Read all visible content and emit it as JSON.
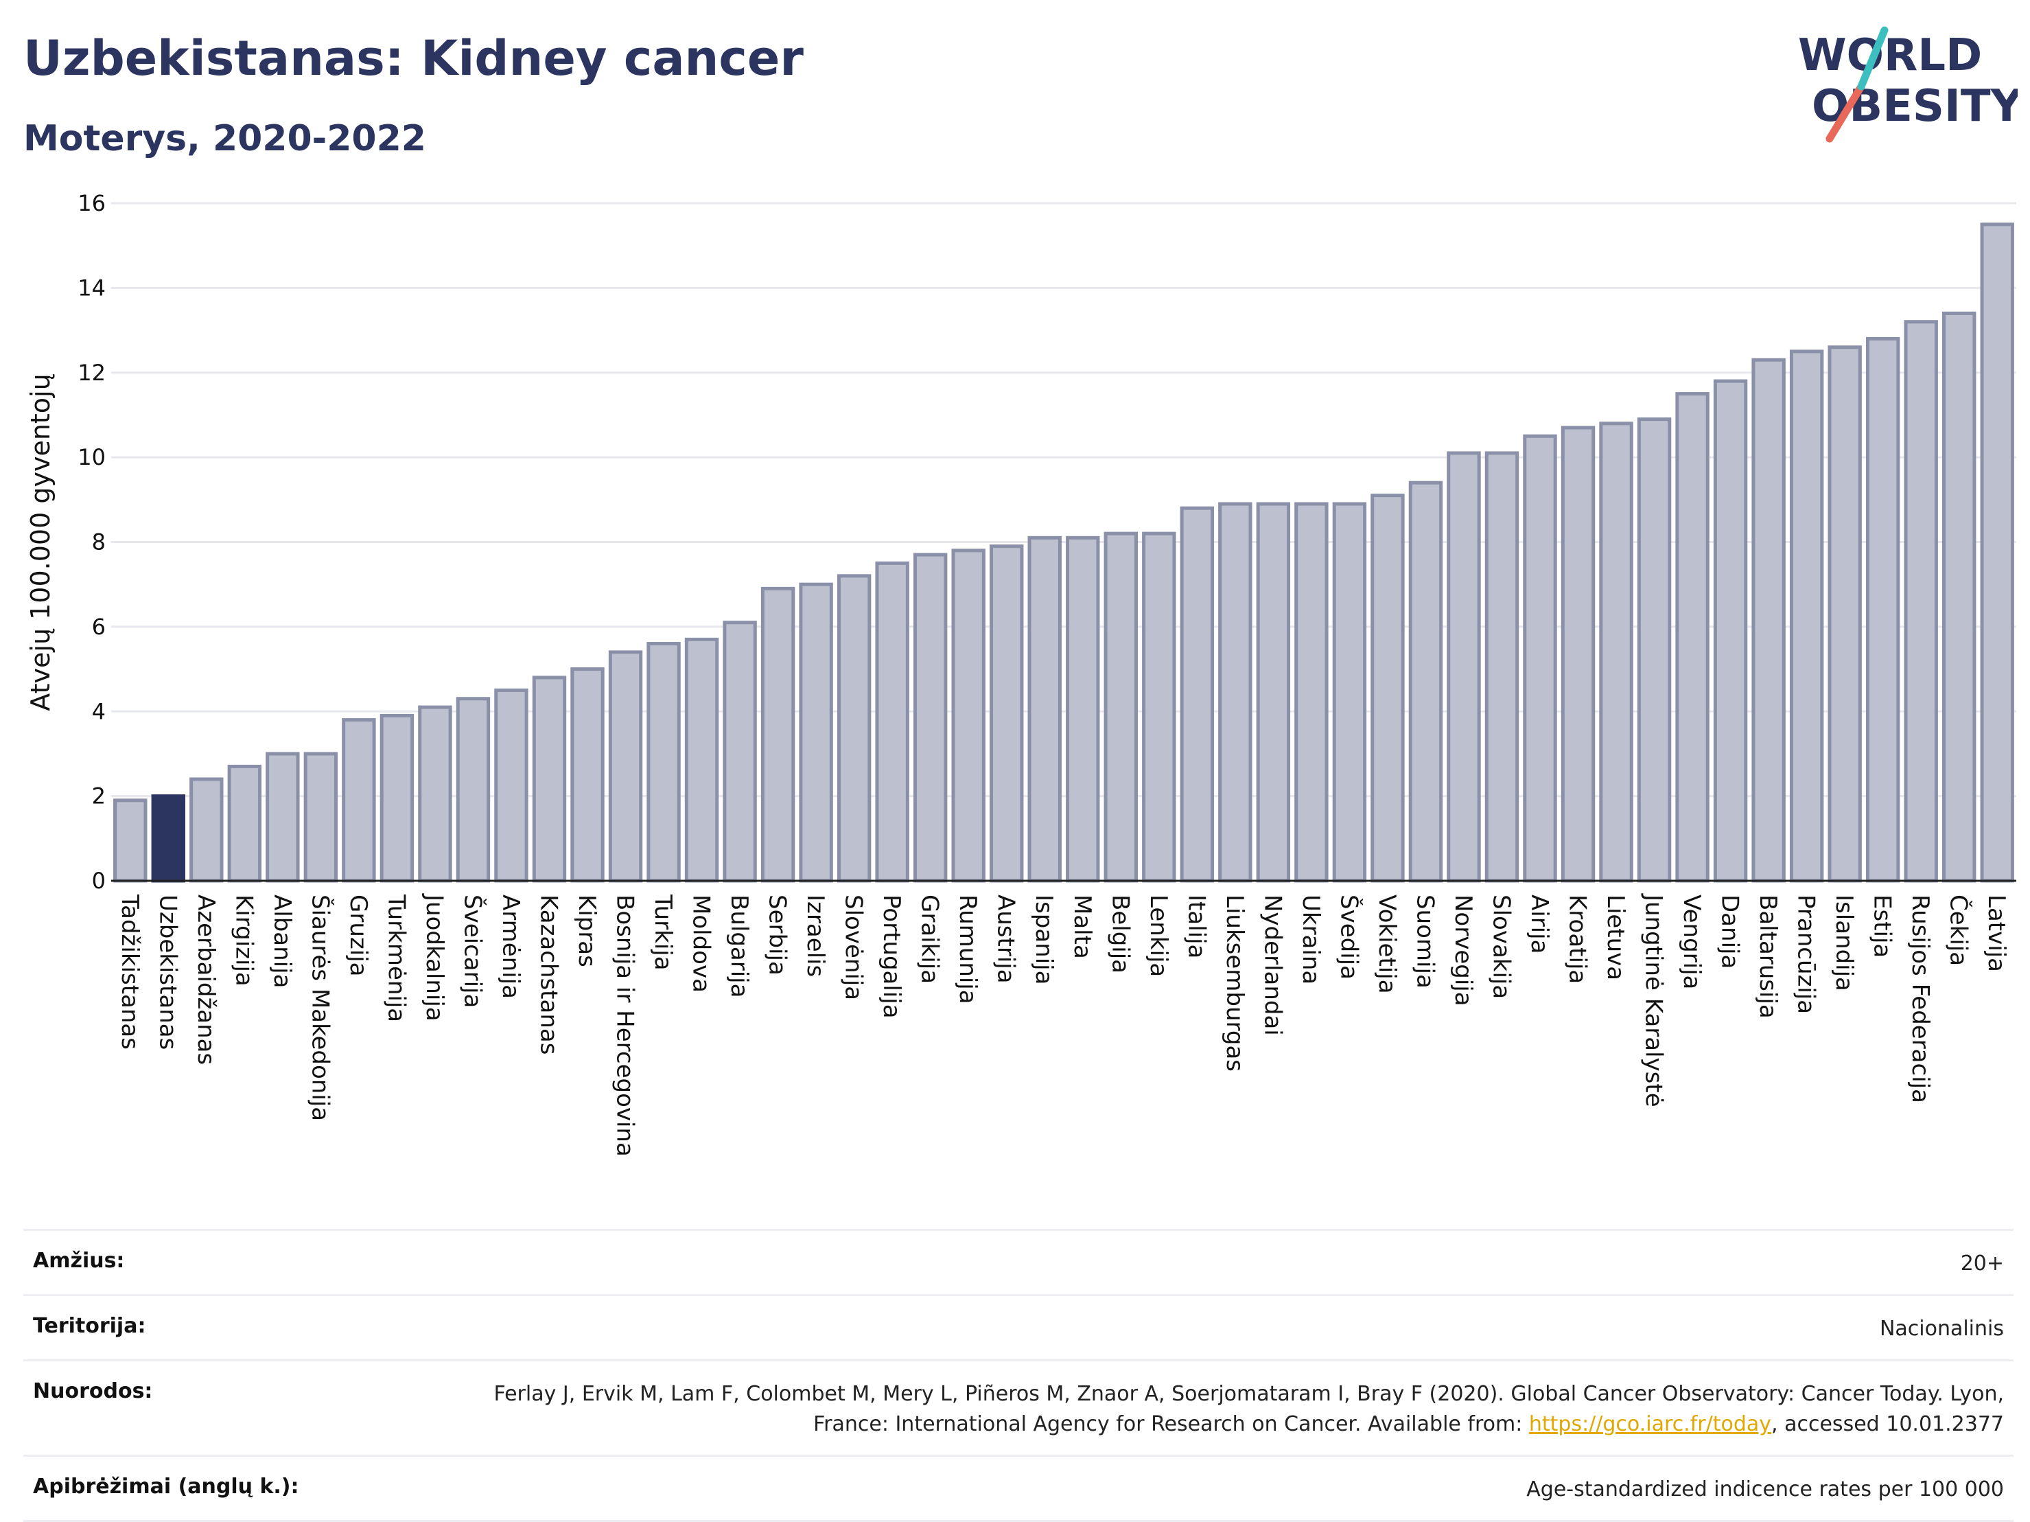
{
  "header": {
    "title": "Uzbekistanas: Kidney cancer",
    "subtitle": "Moterys, 2020-2022"
  },
  "logo": {
    "line1": "WORLD",
    "line2": "OBESITY",
    "slash_colors": [
      "#3dbfbf",
      "#e8685a"
    ],
    "text_color": "#2b3560"
  },
  "chart_data": {
    "type": "bar",
    "title": "Uzbekistanas: Kidney cancer",
    "subtitle": "Moterys, 2020-2022",
    "xlabel": "",
    "ylabel": "Atvejų 100.000 gyventojų",
    "ylim": [
      0,
      16
    ],
    "yticks": [
      0,
      2,
      4,
      6,
      8,
      10,
      12,
      14,
      16
    ],
    "grid": true,
    "highlight": "Uzbekistanas",
    "colors": {
      "bar": "#bcc0cf",
      "bar_edge": "#8a90a8",
      "highlight": "#2b3560"
    },
    "categories": [
      "Tadžikistanas",
      "Uzbekistanas",
      "Azerbaidžanas",
      "Kirgizija",
      "Albanija",
      "Šiaurės Makedonija",
      "Gruzija",
      "Turkmėnija",
      "Juodkalnija",
      "Šveicarija",
      "Armėnija",
      "Kazachstanas",
      "Kipras",
      "Bosnija ir Hercegovina",
      "Turkija",
      "Moldova",
      "Bulgarija",
      "Serbija",
      "Izraelis",
      "Slovėnija",
      "Portugalija",
      "Graikija",
      "Rumunija",
      "Austrija",
      "Ispanija",
      "Malta",
      "Belgija",
      "Lenkija",
      "Italija",
      "Liuksemburgas",
      "Nyderlandai",
      "Ukraina",
      "Švedija",
      "Vokietija",
      "Suomija",
      "Norvegija",
      "Slovakija",
      "Airija",
      "Kroatija",
      "Lietuva",
      "Jungtinė Karalystė",
      "Vengrija",
      "Danija",
      "Baltarusija",
      "Prancūzija",
      "Islandija",
      "Estija",
      "Rusijos Federacija",
      "Čekija",
      "Latvija"
    ],
    "values": [
      1.9,
      2.0,
      2.4,
      2.7,
      3.0,
      3.0,
      3.8,
      3.9,
      4.1,
      4.3,
      4.5,
      4.8,
      5.0,
      5.4,
      5.6,
      5.7,
      6.1,
      6.9,
      7.0,
      7.2,
      7.5,
      7.7,
      7.8,
      7.9,
      8.1,
      8.1,
      8.2,
      8.2,
      8.8,
      8.9,
      8.9,
      8.9,
      8.9,
      9.1,
      9.4,
      10.1,
      10.1,
      10.5,
      10.7,
      10.8,
      10.9,
      11.5,
      11.8,
      12.3,
      12.5,
      12.6,
      12.8,
      13.2,
      13.4,
      15.5
    ]
  },
  "meta": {
    "age_label": "Amžius:",
    "age_value": "20+",
    "territory_label": "Teritorija:",
    "territory_value": "Nacionalinis",
    "refs_label": "Nuorodos:",
    "refs_text_1": "Ferlay J, Ervik M, Lam F, Colombet M, Mery L, Piñeros M, Znaor A, Soerjomataram I, Bray F (2020). Global Cancer Observatory: Cancer Today. Lyon, France: International Agency for Research on Cancer. Available from: ",
    "refs_link": "https://gco.iarc.fr/today",
    "refs_text_2": ", accessed 10.01.2377",
    "defs_label": "Apibrėžimai (anglų k.):",
    "defs_value": "Age-standardized indicence rates per 100 000"
  }
}
